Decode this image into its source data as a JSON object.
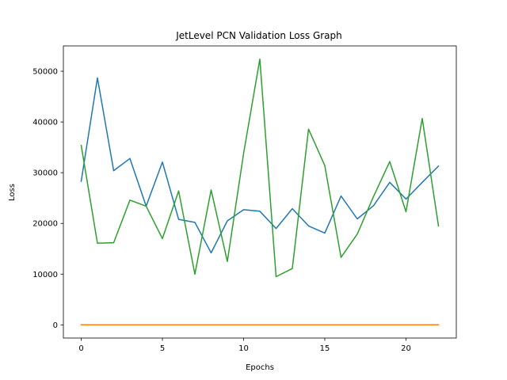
{
  "chart_data": {
    "type": "line",
    "title": "JetLevel PCN Validation Loss Graph",
    "xlabel": "Epochs",
    "ylabel": "Loss",
    "x": [
      0,
      1,
      2,
      3,
      4,
      5,
      6,
      7,
      8,
      9,
      10,
      11,
      12,
      13,
      14,
      15,
      16,
      17,
      18,
      19,
      20,
      21,
      22
    ],
    "xlim": [
      -1.1,
      23.1
    ],
    "ylim": [
      -2600,
      55000
    ],
    "xticks": [
      0,
      5,
      10,
      15,
      20
    ],
    "yticks": [
      0,
      10000,
      20000,
      30000,
      40000,
      50000
    ],
    "grid": false,
    "legend": false,
    "series": [
      {
        "color": "#1f77b4",
        "values": [
          28300,
          48700,
          30400,
          32800,
          23400,
          32100,
          20800,
          20200,
          14200,
          20500,
          22700,
          22400,
          19000,
          22900,
          19500,
          18100,
          25400,
          20900,
          23500,
          28100,
          24800,
          28100,
          31300
        ]
      },
      {
        "color": "#ff7f0e",
        "values": [
          0,
          0,
          0,
          0,
          0,
          0,
          0,
          0,
          0,
          0,
          0,
          0,
          0,
          0,
          0,
          0,
          0,
          0,
          0,
          0,
          0,
          0,
          0
        ]
      },
      {
        "color": "#2ca02c",
        "values": [
          35400,
          16100,
          16200,
          24600,
          23400,
          17000,
          26400,
          10000,
          26600,
          12500,
          33800,
          52400,
          9500,
          11100,
          38600,
          31400,
          13300,
          17900,
          25300,
          32200,
          22300,
          40700,
          19500
        ]
      }
    ]
  }
}
